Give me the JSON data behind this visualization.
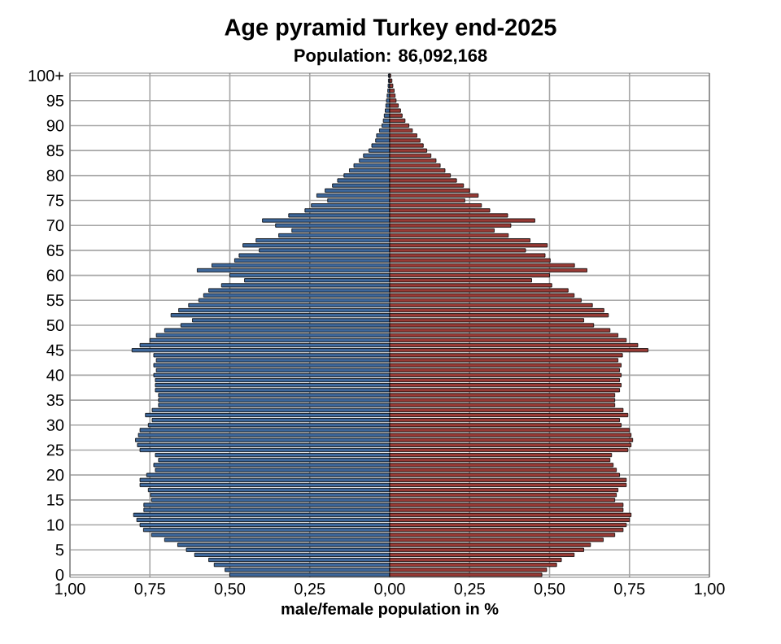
{
  "chart_data": {
    "type": "bar",
    "orientation": "horizontal",
    "title": "Age pyramid Turkey end-2025",
    "subtitle": "Population: 86,092,168",
    "xlabel": "male/female population in %",
    "categories": [
      "100+",
      null,
      null,
      null,
      null,
      "95",
      null,
      null,
      null,
      null,
      "90",
      null,
      null,
      null,
      null,
      "85",
      null,
      null,
      null,
      null,
      "80",
      null,
      null,
      null,
      null,
      "75",
      null,
      null,
      null,
      null,
      "70",
      null,
      null,
      null,
      null,
      "65",
      null,
      null,
      null,
      null,
      "60",
      null,
      null,
      null,
      null,
      "55",
      null,
      null,
      null,
      null,
      "50",
      null,
      null,
      null,
      null,
      "45",
      null,
      null,
      null,
      null,
      "40",
      null,
      null,
      null,
      null,
      "35",
      null,
      null,
      null,
      null,
      "30",
      null,
      null,
      null,
      null,
      "25",
      null,
      null,
      null,
      null,
      "20",
      null,
      null,
      null,
      null,
      "15",
      null,
      null,
      null,
      null,
      "10",
      null,
      null,
      null,
      null,
      "5",
      null,
      null,
      null,
      null,
      "0"
    ],
    "series": [
      {
        "color": "#3d679b",
        "values": [
          -0.004,
          -0.004,
          -0.005,
          -0.006,
          -0.008,
          -0.01,
          -0.012,
          -0.014,
          -0.017,
          -0.02,
          -0.024,
          -0.032,
          -0.041,
          -0.044,
          -0.056,
          -0.065,
          -0.082,
          -0.095,
          -0.112,
          -0.126,
          -0.143,
          -0.163,
          -0.179,
          -0.202,
          -0.228,
          -0.194,
          -0.245,
          -0.265,
          -0.316,
          -0.398,
          -0.357,
          -0.306,
          -0.347,
          -0.418,
          -0.459,
          -0.408,
          -0.471,
          -0.485,
          -0.556,
          -0.602,
          -0.5,
          -0.454,
          -0.526,
          -0.566,
          -0.582,
          -0.597,
          -0.629,
          -0.66,
          -0.684,
          -0.617,
          -0.653,
          -0.704,
          -0.73,
          -0.75,
          -0.781,
          -0.806,
          -0.738,
          -0.73,
          -0.738,
          -0.73,
          -0.738,
          -0.733,
          -0.733,
          -0.733,
          -0.723,
          -0.723,
          -0.723,
          -0.743,
          -0.764,
          -0.743,
          -0.755,
          -0.781,
          -0.786,
          -0.795,
          -0.789,
          -0.781,
          -0.733,
          -0.723,
          -0.738,
          -0.733,
          -0.76,
          -0.781,
          -0.781,
          -0.755,
          -0.748,
          -0.745,
          -0.769,
          -0.769,
          -0.801,
          -0.791,
          -0.781,
          -0.77,
          -0.745,
          -0.704,
          -0.663,
          -0.636,
          -0.61,
          -0.566,
          -0.549,
          -0.515,
          -0.5
        ]
      },
      {
        "color": "#983a35",
        "values": [
          0.003,
          0.007,
          0.01,
          0.014,
          0.017,
          0.02,
          0.027,
          0.034,
          0.039,
          0.048,
          0.06,
          0.071,
          0.085,
          0.095,
          0.105,
          0.116,
          0.129,
          0.145,
          0.158,
          0.173,
          0.19,
          0.209,
          0.231,
          0.25,
          0.277,
          0.235,
          0.287,
          0.313,
          0.369,
          0.454,
          0.379,
          0.327,
          0.371,
          0.439,
          0.493,
          0.425,
          0.486,
          0.502,
          0.578,
          0.617,
          0.5,
          0.444,
          0.507,
          0.558,
          0.577,
          0.599,
          0.634,
          0.67,
          0.684,
          0.607,
          0.638,
          0.689,
          0.714,
          0.74,
          0.776,
          0.808,
          0.728,
          0.714,
          0.724,
          0.719,
          0.724,
          0.719,
          0.724,
          0.719,
          0.704,
          0.704,
          0.704,
          0.73,
          0.745,
          0.719,
          0.724,
          0.75,
          0.755,
          0.76,
          0.755,
          0.745,
          0.694,
          0.689,
          0.699,
          0.709,
          0.719,
          0.74,
          0.74,
          0.714,
          0.709,
          0.704,
          0.73,
          0.73,
          0.755,
          0.75,
          0.74,
          0.73,
          0.704,
          0.668,
          0.628,
          0.607,
          0.577,
          0.537,
          0.522,
          0.491,
          0.476
        ]
      }
    ],
    "xlim": [
      -1,
      1
    ],
    "xticks": [
      {
        "value": -1,
        "label": "1,00"
      },
      {
        "value": -0.75,
        "label": "0,75"
      },
      {
        "value": -0.5,
        "label": "0,50"
      },
      {
        "value": -0.25,
        "label": "0,25"
      },
      {
        "value": 0,
        "label": "0,00"
      },
      {
        "value": 0.25,
        "label": "0,25"
      },
      {
        "value": 0.5,
        "label": "0,50"
      },
      {
        "value": 0.75,
        "label": "0,75"
      },
      {
        "value": 1,
        "label": "1,00"
      }
    ],
    "grid": true,
    "stacked": true
  }
}
